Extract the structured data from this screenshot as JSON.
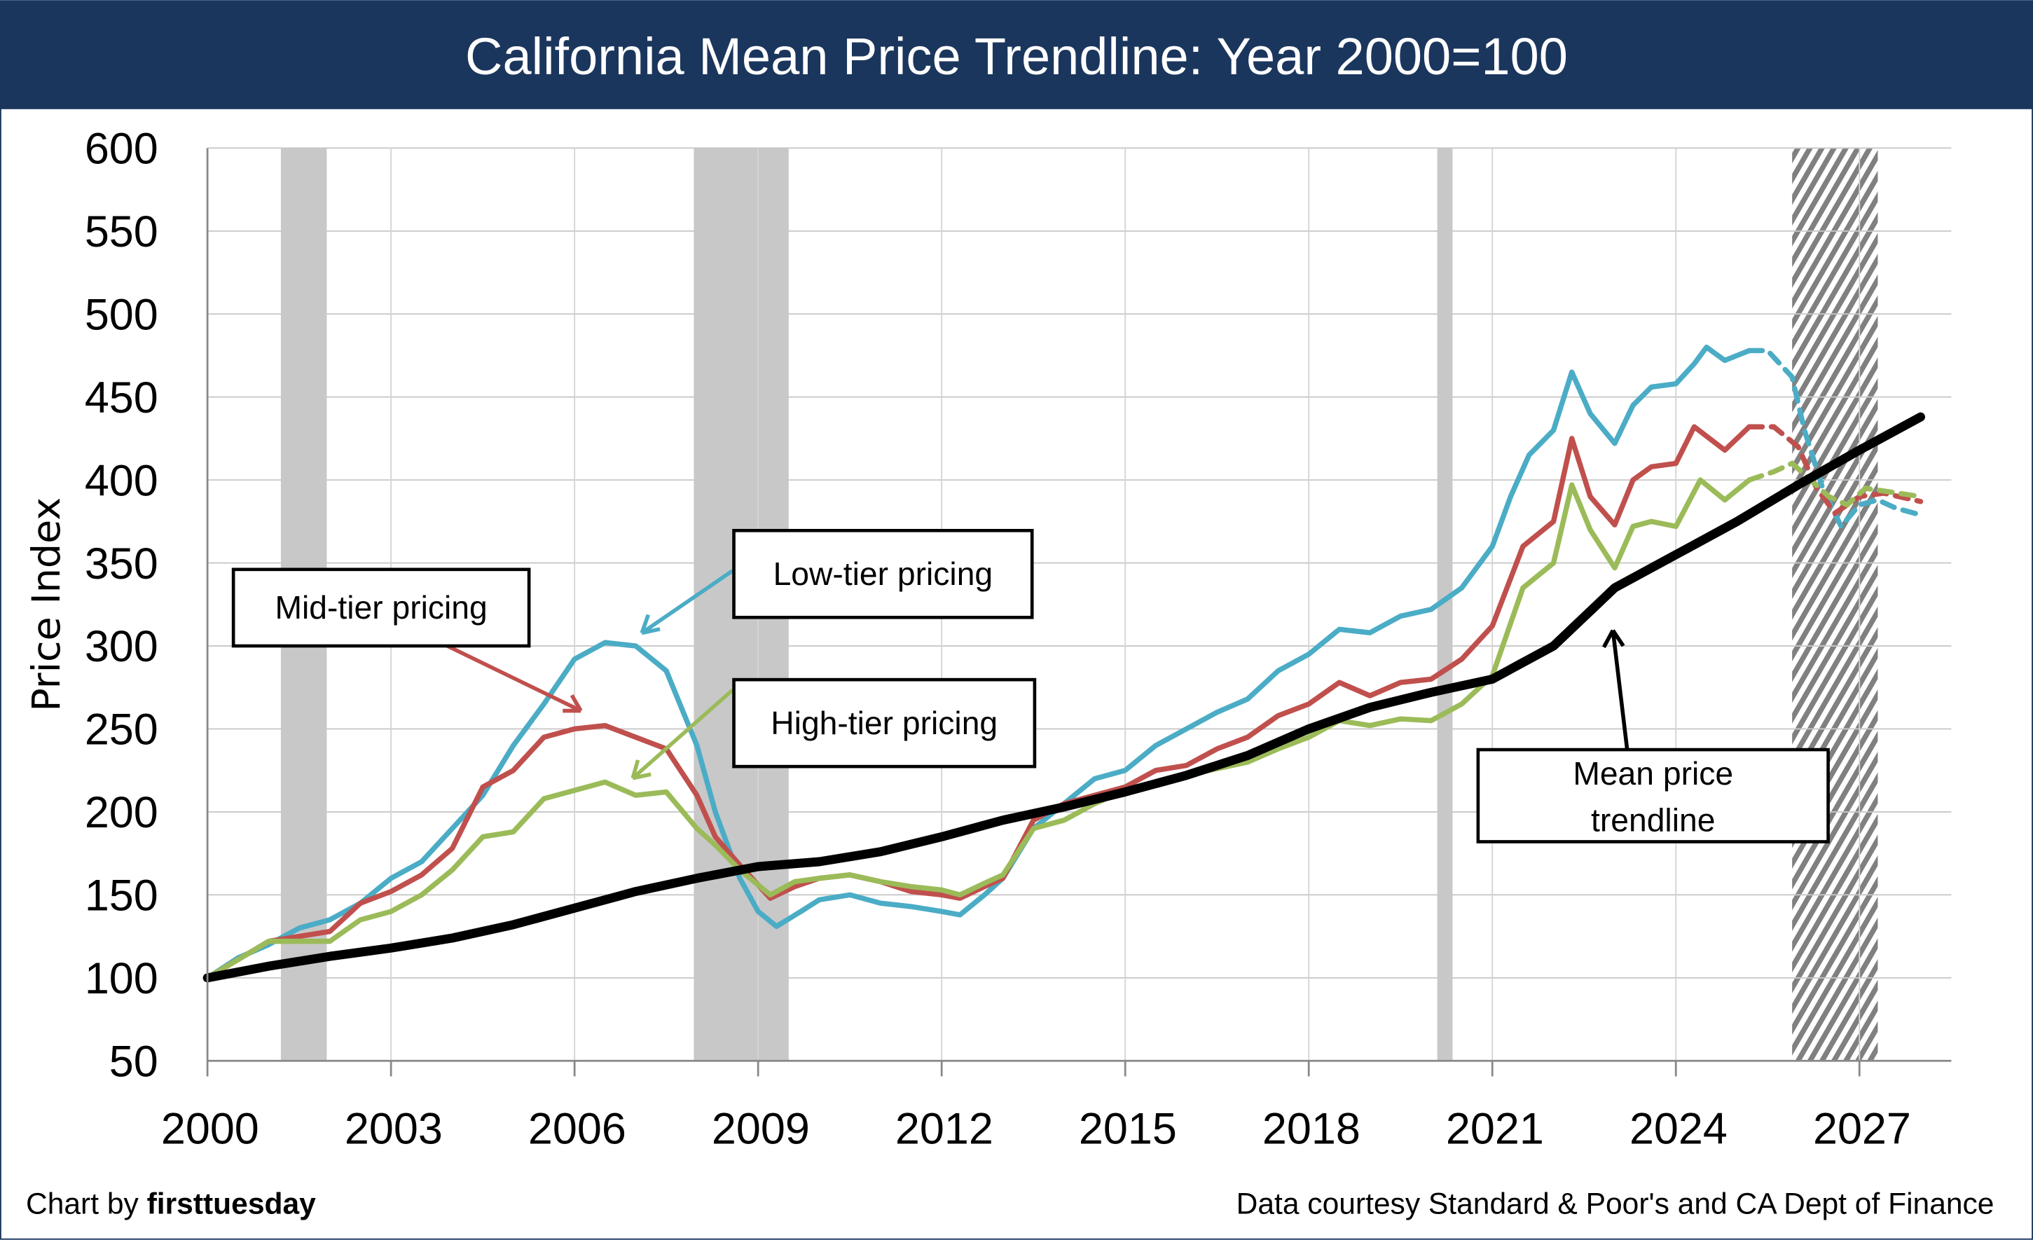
{
  "chart_data": {
    "type": "line",
    "title": "California Mean Price Trendline: Year 2000=100",
    "ylabel": "Price Index",
    "xlabel": "",
    "xlim": [
      2000,
      2028.5
    ],
    "ylim": [
      50,
      600
    ],
    "yticks": [
      50,
      100,
      150,
      200,
      250,
      300,
      350,
      400,
      450,
      500,
      550,
      600
    ],
    "xticks": [
      2000,
      2003,
      2006,
      2009,
      2012,
      2015,
      2018,
      2021,
      2024,
      2027
    ],
    "grid": true,
    "recessions": [
      [
        2001.2,
        2001.95
      ],
      [
        2007.95,
        2009.5
      ],
      [
        2020.1,
        2020.35
      ]
    ],
    "forecast_band": [
      2025.9,
      2027.3
    ],
    "series": [
      {
        "name": "Low-tier pricing",
        "color": "#4bacc6",
        "forecast_from": 2025.2,
        "points": [
          [
            2000,
            100
          ],
          [
            2000.5,
            112
          ],
          [
            2001,
            120
          ],
          [
            2001.5,
            130
          ],
          [
            2002,
            135
          ],
          [
            2002.5,
            145
          ],
          [
            2003,
            160
          ],
          [
            2003.5,
            170
          ],
          [
            2004,
            190
          ],
          [
            2004.5,
            210
          ],
          [
            2005,
            240
          ],
          [
            2005.5,
            265
          ],
          [
            2006,
            292
          ],
          [
            2006.5,
            302
          ],
          [
            2007,
            300
          ],
          [
            2007.5,
            285
          ],
          [
            2008,
            240
          ],
          [
            2008.3,
            200
          ],
          [
            2008.7,
            160
          ],
          [
            2009,
            140
          ],
          [
            2009.3,
            131
          ],
          [
            2009.7,
            140
          ],
          [
            2010,
            147
          ],
          [
            2010.5,
            150
          ],
          [
            2011,
            145
          ],
          [
            2011.5,
            143
          ],
          [
            2012,
            140
          ],
          [
            2012.3,
            138
          ],
          [
            2012.7,
            150
          ],
          [
            2013,
            160
          ],
          [
            2013.5,
            190
          ],
          [
            2014,
            205
          ],
          [
            2014.5,
            220
          ],
          [
            2015,
            225
          ],
          [
            2015.5,
            240
          ],
          [
            2016,
            250
          ],
          [
            2016.5,
            260
          ],
          [
            2017,
            268
          ],
          [
            2017.5,
            285
          ],
          [
            2018,
            295
          ],
          [
            2018.5,
            310
          ],
          [
            2019,
            308
          ],
          [
            2019.5,
            318
          ],
          [
            2020,
            322
          ],
          [
            2020.5,
            335
          ],
          [
            2021,
            360
          ],
          [
            2021.3,
            390
          ],
          [
            2021.6,
            415
          ],
          [
            2022,
            430
          ],
          [
            2022.3,
            465
          ],
          [
            2022.6,
            440
          ],
          [
            2023,
            422
          ],
          [
            2023.3,
            445
          ],
          [
            2023.6,
            456
          ],
          [
            2024,
            458
          ],
          [
            2024.3,
            470
          ],
          [
            2024.5,
            480
          ],
          [
            2024.8,
            472
          ],
          [
            2025.2,
            478
          ],
          [
            2025.5,
            478
          ],
          [
            2025.9,
            462
          ],
          [
            2026.1,
            430
          ],
          [
            2026.4,
            395
          ],
          [
            2026.7,
            372
          ],
          [
            2027,
            385
          ],
          [
            2027.3,
            388
          ],
          [
            2027.6,
            383
          ],
          [
            2028,
            379
          ]
        ]
      },
      {
        "name": "Mid-tier pricing",
        "color": "#c0504d",
        "forecast_from": 2025.2,
        "points": [
          [
            2000,
            100
          ],
          [
            2001,
            122
          ],
          [
            2002,
            128
          ],
          [
            2002.5,
            145
          ],
          [
            2003,
            152
          ],
          [
            2003.5,
            162
          ],
          [
            2004,
            178
          ],
          [
            2004.5,
            215
          ],
          [
            2005,
            225
          ],
          [
            2005.5,
            245
          ],
          [
            2006,
            250
          ],
          [
            2006.5,
            252
          ],
          [
            2007,
            245
          ],
          [
            2007.5,
            238
          ],
          [
            2008,
            210
          ],
          [
            2008.3,
            185
          ],
          [
            2008.7,
            168
          ],
          [
            2009.2,
            148
          ],
          [
            2009.6,
            155
          ],
          [
            2010,
            160
          ],
          [
            2010.5,
            162
          ],
          [
            2011,
            158
          ],
          [
            2011.5,
            152
          ],
          [
            2012,
            150
          ],
          [
            2012.3,
            148
          ],
          [
            2012.7,
            155
          ],
          [
            2013,
            160
          ],
          [
            2013.5,
            195
          ],
          [
            2014,
            205
          ],
          [
            2014.5,
            210
          ],
          [
            2015,
            215
          ],
          [
            2015.5,
            225
          ],
          [
            2016,
            228
          ],
          [
            2016.5,
            238
          ],
          [
            2017,
            245
          ],
          [
            2017.5,
            258
          ],
          [
            2018,
            265
          ],
          [
            2018.5,
            278
          ],
          [
            2019,
            270
          ],
          [
            2019.5,
            278
          ],
          [
            2020,
            280
          ],
          [
            2020.5,
            292
          ],
          [
            2021,
            312
          ],
          [
            2021.5,
            360
          ],
          [
            2022,
            375
          ],
          [
            2022.3,
            425
          ],
          [
            2022.6,
            390
          ],
          [
            2023,
            373
          ],
          [
            2023.3,
            400
          ],
          [
            2023.6,
            408
          ],
          [
            2024,
            410
          ],
          [
            2024.3,
            432
          ],
          [
            2024.8,
            418
          ],
          [
            2025.2,
            432
          ],
          [
            2025.6,
            432
          ],
          [
            2026,
            420
          ],
          [
            2026.3,
            395
          ],
          [
            2026.6,
            380
          ],
          [
            2027,
            390
          ],
          [
            2027.4,
            392
          ],
          [
            2028,
            387
          ]
        ]
      },
      {
        "name": "High-tier pricing",
        "color": "#9bbb59",
        "forecast_from": 2025.2,
        "points": [
          [
            2000,
            100
          ],
          [
            2001,
            122
          ],
          [
            2002,
            122
          ],
          [
            2002.5,
            135
          ],
          [
            2003,
            140
          ],
          [
            2003.5,
            150
          ],
          [
            2004,
            165
          ],
          [
            2004.5,
            185
          ],
          [
            2005,
            188
          ],
          [
            2005.5,
            208
          ],
          [
            2006,
            213
          ],
          [
            2006.5,
            218
          ],
          [
            2007,
            210
          ],
          [
            2007.5,
            212
          ],
          [
            2008,
            190
          ],
          [
            2008.3,
            180
          ],
          [
            2008.7,
            165
          ],
          [
            2009.2,
            150
          ],
          [
            2009.6,
            158
          ],
          [
            2010,
            160
          ],
          [
            2010.5,
            162
          ],
          [
            2011,
            158
          ],
          [
            2011.5,
            155
          ],
          [
            2012,
            153
          ],
          [
            2012.3,
            150
          ],
          [
            2012.7,
            157
          ],
          [
            2013,
            162
          ],
          [
            2013.5,
            190
          ],
          [
            2014,
            195
          ],
          [
            2014.5,
            205
          ],
          [
            2015,
            213
          ],
          [
            2015.5,
            218
          ],
          [
            2016,
            222
          ],
          [
            2016.5,
            226
          ],
          [
            2017,
            230
          ],
          [
            2017.5,
            238
          ],
          [
            2018,
            245
          ],
          [
            2018.5,
            255
          ],
          [
            2019,
            252
          ],
          [
            2019.5,
            256
          ],
          [
            2020,
            255
          ],
          [
            2020.5,
            265
          ],
          [
            2021,
            282
          ],
          [
            2021.5,
            335
          ],
          [
            2022,
            350
          ],
          [
            2022.3,
            397
          ],
          [
            2022.6,
            370
          ],
          [
            2023,
            347
          ],
          [
            2023.3,
            372
          ],
          [
            2023.6,
            375
          ],
          [
            2024,
            372
          ],
          [
            2024.4,
            400
          ],
          [
            2024.8,
            388
          ],
          [
            2025.2,
            400
          ],
          [
            2025.6,
            405
          ],
          [
            2025.9,
            410
          ],
          [
            2026.2,
            400
          ],
          [
            2026.5,
            390
          ],
          [
            2026.8,
            385
          ],
          [
            2027.1,
            395
          ],
          [
            2028,
            390
          ]
        ]
      },
      {
        "name": "Mean price trendline",
        "color": "#000000",
        "points": [
          [
            2000,
            100
          ],
          [
            2001,
            107
          ],
          [
            2002,
            113
          ],
          [
            2003,
            118
          ],
          [
            2004,
            124
          ],
          [
            2005,
            132
          ],
          [
            2006,
            142
          ],
          [
            2007,
            152
          ],
          [
            2008,
            160
          ],
          [
            2009,
            167
          ],
          [
            2010,
            170
          ],
          [
            2011,
            176
          ],
          [
            2012,
            185
          ],
          [
            2013,
            195
          ],
          [
            2014,
            203
          ],
          [
            2015,
            212
          ],
          [
            2016,
            222
          ],
          [
            2017,
            234
          ],
          [
            2018,
            250
          ],
          [
            2019,
            263
          ],
          [
            2020,
            272
          ],
          [
            2021,
            280
          ],
          [
            2022,
            300
          ],
          [
            2023,
            335
          ],
          [
            2024,
            355
          ],
          [
            2025,
            375
          ],
          [
            2026,
            397
          ],
          [
            2027,
            418
          ],
          [
            2028,
            438
          ]
        ]
      }
    ],
    "annotations": {
      "low": "Low-tier pricing",
      "mid": "Mid-tier pricing",
      "high": "High-tier pricing",
      "mean_line1": "Mean price",
      "mean_line2": "trendline"
    },
    "footer_left_prefix": "Chart by ",
    "footer_left_brand": "firsttuesday",
    "footer_right": "Data courtesy Standard & Poor's and CA Dept of Finance",
    "title_bg": "#1b365d"
  }
}
